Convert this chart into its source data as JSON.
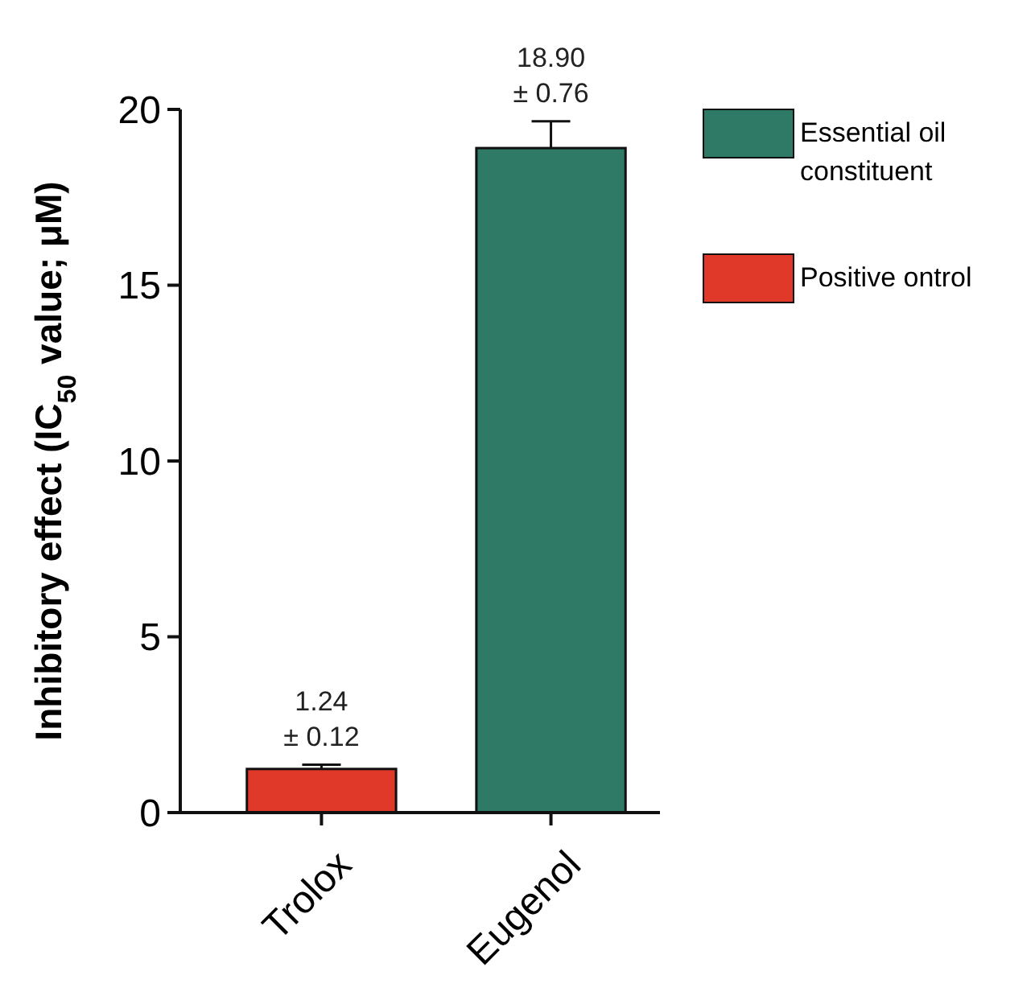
{
  "chart_data": {
    "type": "bar",
    "ylabel": "Inhibitory effect (IC$_{50}$ value; μM)",
    "categories": [
      "Trolox",
      "Eugenol"
    ],
    "series": [
      {
        "name": "Essential oil constituent",
        "color": "#2f7a66",
        "values": [
          null,
          18.9
        ],
        "errors": [
          null,
          0.76
        ],
        "value_labels": [
          null,
          "18.90 ± 0.76"
        ]
      },
      {
        "name": "Positive ontrol",
        "color": "#e0392a",
        "values": [
          1.24,
          null
        ],
        "errors": [
          0.12,
          null
        ],
        "value_labels": [
          "1.24 ± 0.12",
          null
        ]
      }
    ],
    "ylim": [
      0,
      20
    ],
    "yticks": [
      0,
      5,
      10,
      15,
      20
    ],
    "grid": false,
    "legend": "top right"
  }
}
